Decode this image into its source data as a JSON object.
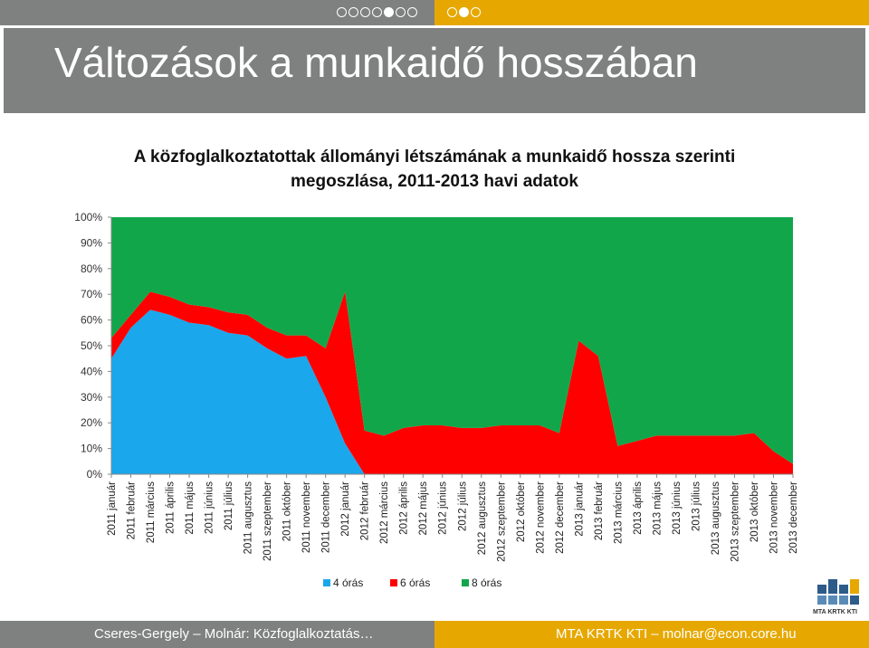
{
  "slide": {
    "title": "Változások a munkaidő hosszában",
    "subtitle_line1": "A közfoglalkoztatottak állományi létszámának a munkaidő hossza szerinti",
    "subtitle_line2": "megoszlása, 2011-2013 havi adatok"
  },
  "nav": {
    "left_dots": [
      false,
      false,
      false,
      false,
      true,
      false,
      false
    ],
    "right_dots": [
      false,
      true,
      false
    ]
  },
  "footer": {
    "left_text": "Cseres-Gergely – Molnár: Közfoglalkoztatás…",
    "right_text": "MTA KRTK KTI – molnar@econ.core.hu"
  },
  "logo": {
    "text": "MTA KRTK KTI"
  },
  "colors": {
    "gray": "#7f8080",
    "gold": "#e6a800",
    "four_hour": "#1aa7ec",
    "six_hour": "#ff0000",
    "eight_hour": "#12a64a"
  },
  "chart_data": {
    "type": "area",
    "stacked": true,
    "title": "",
    "xlabel": "",
    "ylabel": "",
    "ylim": [
      0,
      100
    ],
    "yticks": [
      "0%",
      "10%",
      "20%",
      "30%",
      "40%",
      "50%",
      "60%",
      "70%",
      "80%",
      "90%",
      "100%"
    ],
    "legend_position": "bottom",
    "categories": [
      "2011 január",
      "2011 február",
      "2011 március",
      "2011 április",
      "2011 május",
      "2011 június",
      "2011 július",
      "2011 augusztus",
      "2011 szeptember",
      "2011 október",
      "2011 november",
      "2011 december",
      "2012 január",
      "2012 február",
      "2012 március",
      "2012 április",
      "2012 május",
      "2012 június",
      "2012 július",
      "2012 augusztus",
      "2012 szeptember",
      "2012 október",
      "2012 november",
      "2012 december",
      "2013 január",
      "2013 február",
      "2013 március",
      "2013 április",
      "2013 május",
      "2013 június",
      "2013 július",
      "2013 augusztus",
      "2013 szeptember",
      "2013 október",
      "2013 november",
      "2013 december"
    ],
    "series": [
      {
        "name": "4 órás",
        "values": [
          45,
          57,
          64,
          62,
          59,
          58,
          55,
          54,
          49,
          45,
          46,
          30,
          12,
          0,
          0,
          0,
          0,
          0,
          0,
          0,
          0,
          0,
          0,
          0,
          0,
          0,
          0,
          0,
          0,
          0,
          0,
          0,
          0,
          0,
          0,
          0
        ]
      },
      {
        "name": "6 órás",
        "values": [
          8,
          5,
          7,
          7,
          7,
          7,
          8,
          8,
          8,
          9,
          8,
          19,
          59,
          17,
          15,
          18,
          19,
          19,
          18,
          18,
          19,
          19,
          19,
          16,
          52,
          46,
          11,
          13,
          15,
          15,
          15,
          15,
          15,
          16,
          9,
          4
        ]
      },
      {
        "name": "8 órás",
        "values": [
          47,
          38,
          29,
          31,
          34,
          35,
          37,
          38,
          43,
          46,
          46,
          51,
          29,
          83,
          85,
          82,
          81,
          81,
          82,
          82,
          81,
          81,
          81,
          84,
          48,
          54,
          89,
          87,
          85,
          85,
          85,
          85,
          85,
          84,
          91,
          96
        ]
      }
    ]
  }
}
